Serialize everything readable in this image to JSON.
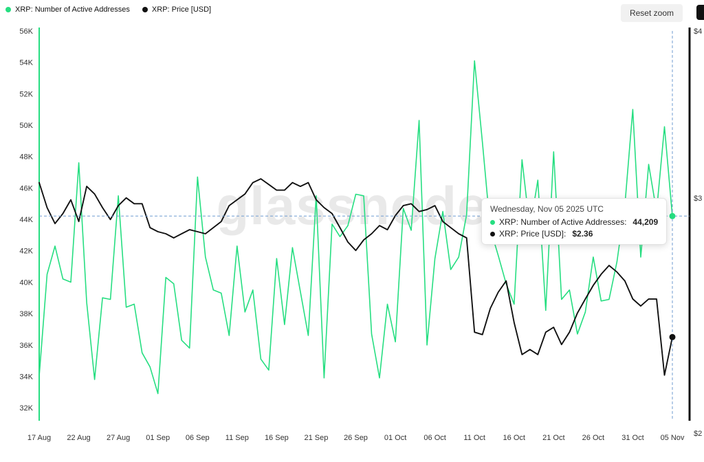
{
  "header": {
    "reset_zoom_label": "Reset zoom"
  },
  "legend": [
    {
      "label": "XRP: Number of Active Addresses",
      "color": "#26de81"
    },
    {
      "label": "XRP: Price [USD]",
      "color": "#111111"
    }
  ],
  "watermark": "glassnode",
  "tooltip": {
    "title": "Wednesday, Nov 05 2025 UTC",
    "rows": [
      {
        "label": "XRP: Number of Active Addresses:",
        "value": "44,209",
        "color": "#26de81"
      },
      {
        "label": "XRP: Price [USD]:",
        "value": "$2.36",
        "color": "#111111"
      }
    ]
  },
  "chart_data": {
    "type": "line",
    "title": "",
    "x_tick_labels": [
      "17 Aug",
      "22 Aug",
      "27 Aug",
      "01 Sep",
      "06 Sep",
      "11 Sep",
      "16 Sep",
      "21 Sep",
      "26 Sep",
      "01 Oct",
      "06 Oct",
      "11 Oct",
      "16 Oct",
      "21 Oct",
      "26 Oct",
      "31 Oct",
      "05 Nov"
    ],
    "x_tick_days": [
      0,
      5,
      10,
      15,
      20,
      25,
      30,
      35,
      40,
      45,
      50,
      55,
      60,
      65,
      70,
      75,
      80
    ],
    "x_day_span": 80,
    "grid": false,
    "left_axis": {
      "title": "XRP: Number of Active Addresses",
      "unit": "thousands",
      "tick_labels": [
        "56K",
        "54K",
        "52K",
        "50K",
        "48K",
        "46K",
        "44K",
        "42K",
        "40K",
        "38K",
        "36K",
        "34K",
        "32K"
      ],
      "tick_values": [
        56,
        54,
        52,
        50,
        48,
        46,
        44,
        42,
        40,
        38,
        36,
        34,
        32
      ],
      "min": 31.26,
      "max": 56,
      "color": "#26de81"
    },
    "right_axis": {
      "title": "XRP: Price [USD]",
      "unit": "USD",
      "tick_labels": [
        "$4",
        "$3",
        "$2"
      ],
      "tick_values": [
        4,
        3,
        2
      ],
      "min": 2,
      "max": 4,
      "scale": "log",
      "color": "#111111"
    },
    "series": [
      {
        "name": "XRP: Number of Active Addresses",
        "axis": "left",
        "color": "#26de81",
        "values": [
          34,
          40.5,
          42.3,
          40.2,
          40,
          47.6,
          38.7,
          33.8,
          39,
          38.9,
          45.5,
          38.4,
          38.6,
          35.5,
          34.6,
          32.9,
          40.3,
          39.9,
          36.3,
          35.8,
          46.7,
          41.6,
          39.5,
          39.3,
          36.6,
          42.3,
          38.1,
          39.5,
          35.1,
          34.4,
          41.5,
          37.3,
          42.2,
          39.4,
          36.6,
          45.5,
          33.9,
          43.7,
          42.9,
          43.6,
          45.6,
          45.5,
          36.7,
          33.9,
          38.6,
          36.2,
          44.7,
          43.3,
          50.3,
          36,
          41.5,
          44.5,
          40.8,
          41.6,
          44.3,
          54.1,
          48.9,
          43.4,
          41.7,
          39.9,
          38.6,
          47.8,
          43.4,
          46.5,
          38.2,
          48.3,
          38.9,
          39.5,
          36.7,
          38.1,
          41.6,
          38.8,
          38.9,
          41.3,
          44.9,
          51,
          41.6,
          47.5,
          44.5,
          49.9,
          44.209
        ]
      },
      {
        "name": "XRP: Price [USD]",
        "axis": "right",
        "color": "#111111",
        "values": [
          3.08,
          2.95,
          2.87,
          2.92,
          2.99,
          2.88,
          3.06,
          3.02,
          2.95,
          2.89,
          2.96,
          3.0,
          2.97,
          2.97,
          2.85,
          2.83,
          2.82,
          2.8,
          2.82,
          2.84,
          2.83,
          2.82,
          2.85,
          2.88,
          2.96,
          2.99,
          3.02,
          3.08,
          3.1,
          3.07,
          3.04,
          3.04,
          3.08,
          3.06,
          3.08,
          2.99,
          2.95,
          2.92,
          2.85,
          2.78,
          2.74,
          2.79,
          2.82,
          2.86,
          2.84,
          2.91,
          2.96,
          2.97,
          2.93,
          2.94,
          2.96,
          2.88,
          2.85,
          2.82,
          2.8,
          2.38,
          2.37,
          2.48,
          2.55,
          2.6,
          2.42,
          2.29,
          2.31,
          2.29,
          2.38,
          2.4,
          2.33,
          2.38,
          2.46,
          2.52,
          2.58,
          2.63,
          2.67,
          2.64,
          2.6,
          2.52,
          2.49,
          2.52,
          2.52,
          2.21,
          2.36
        ]
      }
    ],
    "crosshair": {
      "x_day": 80,
      "left_value": 44.209,
      "right_value": 2.36,
      "color": "#6f9bd1"
    }
  }
}
